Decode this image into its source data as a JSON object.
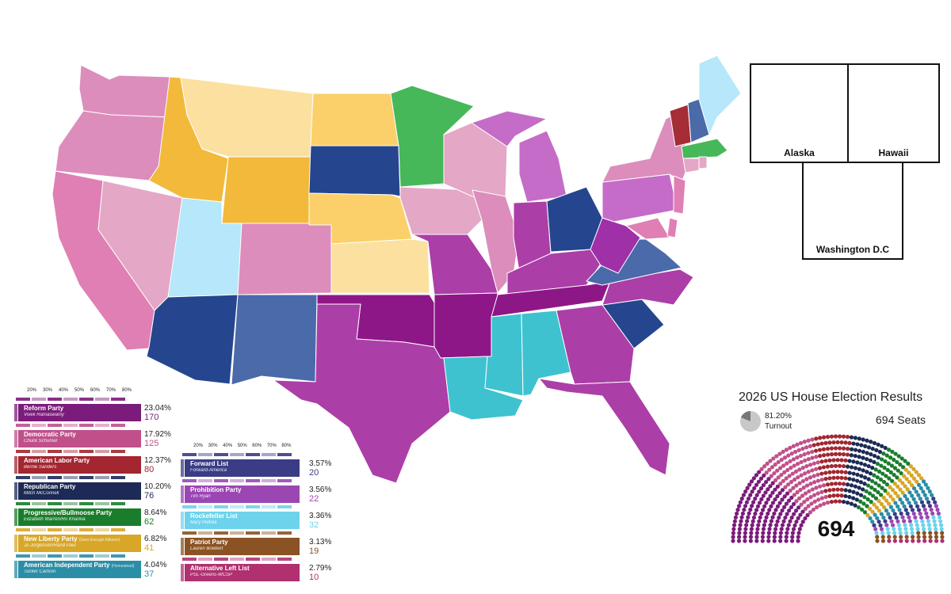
{
  "insets": {
    "alaska": "Alaska",
    "hawaii": "Hawaii",
    "dc": "Washington D.C"
  },
  "scale_labels": [
    "20%",
    "30%",
    "40%",
    "50%",
    "60%",
    "70%",
    "80%"
  ],
  "parties_left": [
    {
      "name": "Reform Party",
      "leader": "Vivek Ramaswamy",
      "note": "",
      "pct": "23.04%",
      "seats": "170",
      "color": "#7b1b7b"
    },
    {
      "name": "Democratic Party",
      "leader": "Chuck Schumer",
      "note": "",
      "pct": "17.92%",
      "seats": "125",
      "color": "#c0508a"
    },
    {
      "name": "American Labor Party",
      "leader": "Bernie Sanders",
      "note": "",
      "pct": "12.37%",
      "seats": "80",
      "color": "#a32630"
    },
    {
      "name": "Republican Party",
      "leader": "Mitch McConnell",
      "note": "",
      "pct": "10.20%",
      "seats": "76",
      "color": "#1c2a55"
    },
    {
      "name": "Progressive/Bullmoose Party",
      "leader": "Elizabeth Warren/Ro Khanna",
      "note": "",
      "pct": "8.64%",
      "seats": "62",
      "color": "#1a7d2c"
    },
    {
      "name": "New Liberty Party",
      "leader": "Jo Jorgensen/Rand Paul",
      "note": "(Sees Enough Alliance)",
      "pct": "6.82%",
      "seats": "41",
      "color": "#d8a728"
    },
    {
      "name": "American Independent Party",
      "leader": "Tucker Carlson",
      "note": "(Homestead)",
      "pct": "4.04%",
      "seats": "37",
      "color": "#2a8ea6"
    }
  ],
  "parties_right": [
    {
      "name": "Forward List",
      "leader": "Forward-America",
      "pct": "3.57%",
      "seats": "20",
      "color": "#3a3c85"
    },
    {
      "name": "Prohibition Party",
      "leader": "Tim Ryan",
      "pct": "3.56%",
      "seats": "22",
      "color": "#9b47b3"
    },
    {
      "name": "Rockefeller List",
      "leader": "Mary Peltola",
      "pct": "3.36%",
      "seats": "32",
      "color": "#6dd3ec"
    },
    {
      "name": "Patriot Party",
      "leader": "Lauren Boebert",
      "pct": "3.13%",
      "seats": "19",
      "color": "#8b5223"
    },
    {
      "name": "Alternative Left List",
      "leader": "PSL-Greens-WCSP",
      "pct": "2.79%",
      "seats": "10",
      "color": "#b03070"
    }
  ],
  "results": {
    "title": "2026 US House Election Results",
    "turnout_pct": "81.20%",
    "turnout_label": "Turnout",
    "seats_label": "694 Seats",
    "total": "694",
    "turnout_value": 81.2
  },
  "map_colors": {
    "reform": "#8e1788",
    "reform_light": "#a945ad",
    "reform_mid": "#ac3ea8",
    "democratic": "#e07fb4",
    "democratic_light": "#e4a7c6",
    "democratic_mid": "#dc8dbc",
    "labor": "#a52d35",
    "republican": "#25468f",
    "republican_light": "#4a6aaa",
    "progressive": "#46b859",
    "liberty": "#f2b93a",
    "liberty_light": "#fbd06a",
    "liberty_pale": "#fbe09f",
    "independent": "#3ec2d0",
    "rockefeller": "#b6e7fa",
    "prohibition": "#c46cc8",
    "dc": "#7d3a62"
  }
}
